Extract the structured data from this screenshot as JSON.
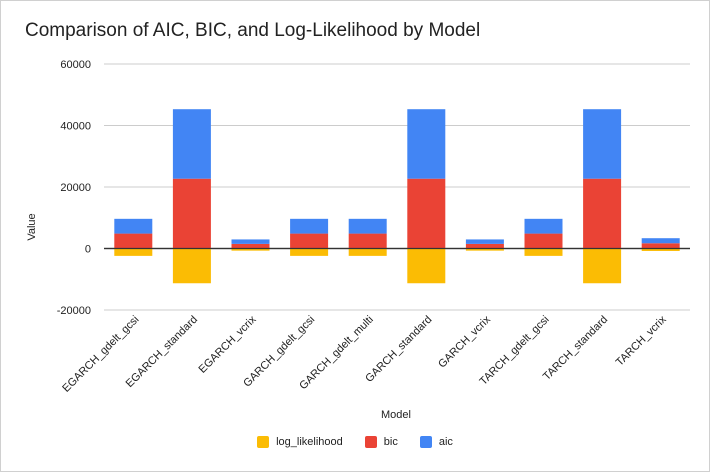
{
  "chart_data": {
    "type": "bar",
    "stacked": true,
    "title": "Comparison of AIC, BIC, and Log-Likelihood by Model",
    "xlabel": "Model",
    "ylabel": "Value",
    "ylim": [
      -20000,
      60000
    ],
    "yticks": [
      -20000,
      0,
      20000,
      40000,
      60000
    ],
    "grid": true,
    "legend_position": "bottom",
    "categories": [
      "EGARCH_gdelt_gcsi",
      "EGARCH_standard",
      "EGARCH_vcrix",
      "GARCH_gdelt_gcsi",
      "GARCH_gdelt_multi",
      "GARCH_standard",
      "GARCH_vcrix",
      "TARCH_gdelt_gcsi",
      "TARCH_standard",
      "TARCH_vcrix"
    ],
    "series": [
      {
        "name": "log_likelihood",
        "color": "#fbbc04",
        "values": [
          -2400,
          -11300,
          -700,
          -2400,
          -2400,
          -11300,
          -700,
          -2400,
          -11300,
          -800
        ]
      },
      {
        "name": "bic",
        "color": "#ea4335",
        "values": [
          4850,
          22700,
          1500,
          4850,
          4850,
          22700,
          1500,
          4850,
          22700,
          1700
        ]
      },
      {
        "name": "aic",
        "color": "#4285f4",
        "values": [
          4800,
          22600,
          1450,
          4800,
          4800,
          22600,
          1450,
          4800,
          22600,
          1650
        ]
      }
    ]
  }
}
